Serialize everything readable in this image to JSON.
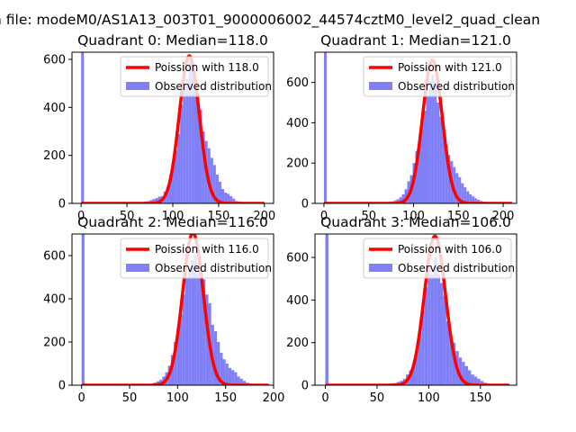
{
  "figure": {
    "suptitle": "n file: modeM0/AS1A13_003T01_9000006002_44574cztM0_level2_quad_clean",
    "hist_color": "#7f7ff8",
    "curve_color": "#ff0000"
  },
  "chart_data": [
    {
      "type": "bar",
      "title": "Quadrant 0: Median=118.0",
      "legend": [
        "Poission with 118.0",
        "Observed distribution"
      ],
      "legend_position": "top-right",
      "xlim": [
        -10,
        210
      ],
      "ylim": [
        0,
        630
      ],
      "xticks": [
        0,
        50,
        100,
        150,
        200
      ],
      "yticks": [
        0,
        200,
        400,
        600
      ],
      "bins": [
        [
          0,
          3,
          630
        ],
        [
          48,
          51,
          2
        ],
        [
          51,
          54,
          3
        ],
        [
          54,
          57,
          3
        ],
        [
          57,
          60,
          5
        ],
        [
          60,
          63,
          5
        ],
        [
          63,
          66,
          5
        ],
        [
          66,
          69,
          6
        ],
        [
          69,
          72,
          8
        ],
        [
          72,
          75,
          10
        ],
        [
          75,
          78,
          14
        ],
        [
          78,
          81,
          18
        ],
        [
          81,
          84,
          22
        ],
        [
          84,
          87,
          28
        ],
        [
          87,
          90,
          30
        ],
        [
          90,
          93,
          50
        ],
        [
          93,
          96,
          70
        ],
        [
          96,
          99,
          100
        ],
        [
          99,
          102,
          160
        ],
        [
          102,
          105,
          220
        ],
        [
          105,
          108,
          290
        ],
        [
          108,
          111,
          410
        ],
        [
          111,
          114,
          480
        ],
        [
          114,
          117,
          520
        ],
        [
          117,
          120,
          600
        ],
        [
          120,
          123,
          560
        ],
        [
          123,
          126,
          470
        ],
        [
          126,
          129,
          440
        ],
        [
          129,
          132,
          390
        ],
        [
          132,
          135,
          300
        ],
        [
          135,
          138,
          260
        ],
        [
          138,
          141,
          230
        ],
        [
          141,
          144,
          190
        ],
        [
          144,
          147,
          160
        ],
        [
          147,
          150,
          120
        ],
        [
          150,
          153,
          90
        ],
        [
          153,
          156,
          60
        ],
        [
          156,
          159,
          45
        ],
        [
          159,
          162,
          40
        ],
        [
          162,
          165,
          30
        ],
        [
          165,
          168,
          20
        ],
        [
          168,
          171,
          10
        ],
        [
          171,
          174,
          8
        ],
        [
          174,
          177,
          5
        ],
        [
          177,
          180,
          3
        ],
        [
          180,
          183,
          2
        ]
      ],
      "poisson_mean": 118.0,
      "curve_peak": 615,
      "curve_x_range": [
        0,
        200
      ]
    },
    {
      "type": "bar",
      "title": "Quadrant 1: Median=121.0",
      "legend": [
        "Poission with 121.0",
        "Observed distribution"
      ],
      "legend_position": "top-right",
      "xlim": [
        -10,
        215
      ],
      "ylim": [
        0,
        750
      ],
      "xticks": [
        0,
        50,
        100,
        150,
        200
      ],
      "yticks": [
        0,
        200,
        400,
        600
      ],
      "bins": [
        [
          0,
          3,
          750
        ],
        [
          63,
          66,
          2
        ],
        [
          66,
          69,
          3
        ],
        [
          69,
          72,
          5
        ],
        [
          72,
          75,
          8
        ],
        [
          75,
          78,
          10
        ],
        [
          78,
          81,
          15
        ],
        [
          81,
          84,
          20
        ],
        [
          84,
          87,
          30
        ],
        [
          87,
          90,
          45
        ],
        [
          90,
          93,
          70
        ],
        [
          93,
          96,
          110
        ],
        [
          96,
          99,
          140
        ],
        [
          99,
          102,
          200
        ],
        [
          102,
          105,
          260
        ],
        [
          105,
          108,
          300
        ],
        [
          108,
          111,
          400
        ],
        [
          111,
          114,
          460
        ],
        [
          114,
          117,
          540
        ],
        [
          117,
          120,
          600
        ],
        [
          120,
          123,
          640
        ],
        [
          123,
          126,
          600
        ],
        [
          126,
          129,
          500
        ],
        [
          129,
          132,
          430
        ],
        [
          132,
          135,
          380
        ],
        [
          135,
          138,
          290
        ],
        [
          138,
          141,
          240
        ],
        [
          141,
          144,
          210
        ],
        [
          144,
          147,
          180
        ],
        [
          147,
          150,
          150
        ],
        [
          150,
          153,
          130
        ],
        [
          153,
          156,
          100
        ],
        [
          156,
          159,
          80
        ],
        [
          159,
          162,
          60
        ],
        [
          162,
          165,
          45
        ],
        [
          165,
          168,
          35
        ],
        [
          168,
          171,
          25
        ],
        [
          171,
          174,
          18
        ],
        [
          174,
          177,
          12
        ],
        [
          177,
          180,
          8
        ],
        [
          180,
          183,
          5
        ],
        [
          183,
          186,
          3
        ],
        [
          186,
          189,
          2
        ]
      ],
      "poisson_mean": 121.0,
      "curve_peak": 710,
      "curve_x_range": [
        0,
        210
      ]
    },
    {
      "type": "bar",
      "title": "Quadrant 2: Median=116.0",
      "legend": [
        "Poission with 116.0",
        "Observed distribution"
      ],
      "legend_position": "top-right",
      "xlim": [
        -10,
        200
      ],
      "ylim": [
        0,
        700
      ],
      "xticks": [
        0,
        50,
        100,
        150,
        200
      ],
      "yticks": [
        0,
        200,
        400,
        600
      ],
      "bins": [
        [
          0,
          3,
          700
        ],
        [
          63,
          66,
          2
        ],
        [
          66,
          69,
          3
        ],
        [
          69,
          72,
          5
        ],
        [
          72,
          75,
          8
        ],
        [
          75,
          78,
          12
        ],
        [
          78,
          81,
          18
        ],
        [
          81,
          84,
          25
        ],
        [
          84,
          87,
          40
        ],
        [
          87,
          90,
          60
        ],
        [
          90,
          93,
          90
        ],
        [
          93,
          96,
          140
        ],
        [
          96,
          99,
          200
        ],
        [
          99,
          102,
          260
        ],
        [
          102,
          105,
          330
        ],
        [
          105,
          108,
          420
        ],
        [
          108,
          111,
          500
        ],
        [
          111,
          114,
          540
        ],
        [
          114,
          117,
          580
        ],
        [
          117,
          120,
          600
        ],
        [
          120,
          123,
          550
        ],
        [
          123,
          126,
          520
        ],
        [
          126,
          129,
          490
        ],
        [
          129,
          132,
          420
        ],
        [
          132,
          135,
          380
        ],
        [
          135,
          138,
          280
        ],
        [
          138,
          141,
          250
        ],
        [
          141,
          144,
          200
        ],
        [
          144,
          147,
          150
        ],
        [
          147,
          150,
          120
        ],
        [
          150,
          153,
          100
        ],
        [
          153,
          156,
          80
        ],
        [
          156,
          159,
          70
        ],
        [
          159,
          162,
          60
        ],
        [
          162,
          165,
          40
        ],
        [
          165,
          168,
          30
        ],
        [
          168,
          171,
          20
        ],
        [
          171,
          174,
          12
        ],
        [
          174,
          177,
          8
        ],
        [
          177,
          180,
          5
        ],
        [
          180,
          183,
          3
        ]
      ],
      "poisson_mean": 116.0,
      "curve_peak": 705,
      "curve_x_range": [
        0,
        195
      ]
    },
    {
      "type": "bar",
      "title": "Quadrant 3: Median=106.0",
      "legend": [
        "Poission with 106.0",
        "Observed distribution"
      ],
      "legend_position": "top-right",
      "xlim": [
        -10,
        185
      ],
      "ylim": [
        0,
        710
      ],
      "xticks": [
        0,
        50,
        100,
        150
      ],
      "yticks": [
        0,
        200,
        400,
        600
      ],
      "bins": [
        [
          0,
          3,
          710
        ],
        [
          48,
          51,
          2
        ],
        [
          51,
          54,
          3
        ],
        [
          54,
          57,
          3
        ],
        [
          57,
          60,
          5
        ],
        [
          60,
          63,
          5
        ],
        [
          63,
          66,
          8
        ],
        [
          66,
          69,
          10
        ],
        [
          69,
          72,
          15
        ],
        [
          72,
          75,
          20
        ],
        [
          75,
          78,
          30
        ],
        [
          78,
          81,
          50
        ],
        [
          81,
          84,
          70
        ],
        [
          84,
          87,
          100
        ],
        [
          87,
          90,
          160
        ],
        [
          90,
          93,
          250
        ],
        [
          93,
          96,
          350
        ],
        [
          96,
          99,
          460
        ],
        [
          99,
          102,
          560
        ],
        [
          102,
          105,
          520
        ],
        [
          105,
          108,
          600
        ],
        [
          108,
          111,
          520
        ],
        [
          111,
          114,
          480
        ],
        [
          114,
          117,
          420
        ],
        [
          117,
          120,
          300
        ],
        [
          120,
          123,
          230
        ],
        [
          123,
          126,
          200
        ],
        [
          126,
          129,
          160
        ],
        [
          129,
          132,
          130
        ],
        [
          132,
          135,
          110
        ],
        [
          135,
          138,
          90
        ],
        [
          138,
          141,
          70
        ],
        [
          141,
          144,
          50
        ],
        [
          144,
          147,
          40
        ],
        [
          147,
          150,
          30
        ],
        [
          150,
          153,
          20
        ],
        [
          153,
          156,
          12
        ],
        [
          156,
          159,
          8
        ],
        [
          159,
          162,
          5
        ],
        [
          162,
          165,
          3
        ]
      ],
      "poisson_mean": 106.0,
      "curve_peak": 700,
      "curve_x_range": [
        0,
        178
      ]
    }
  ]
}
